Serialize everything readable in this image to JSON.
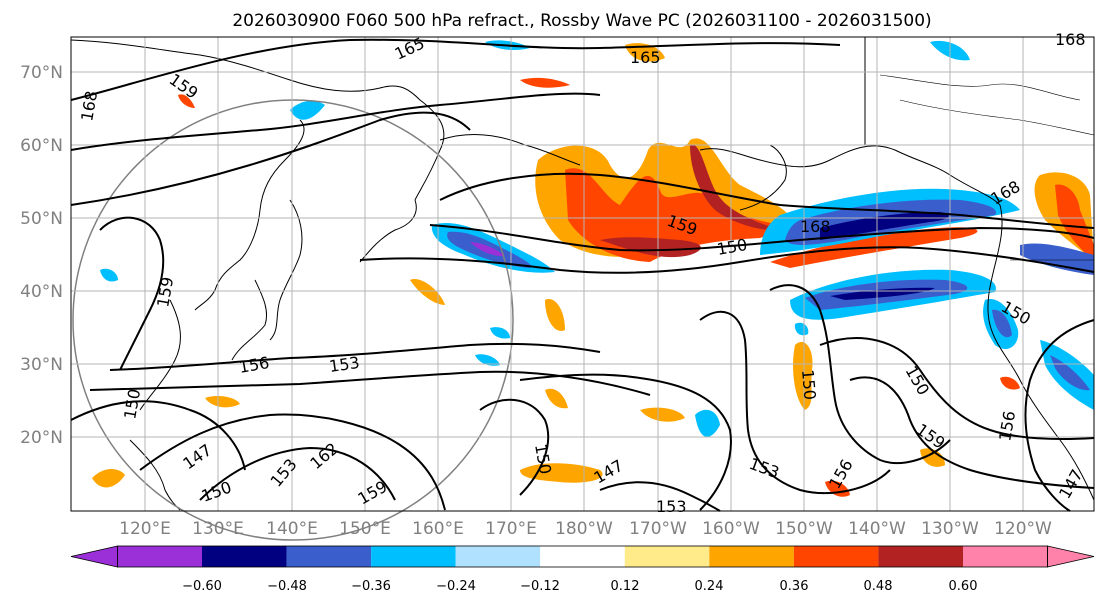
{
  "title": "2026030900 F060 500 hPa refract., Rossby Wave PC (2026031100 - 2026031500)",
  "lat_labels": [
    "70°N",
    "60°N",
    "50°N",
    "40°N",
    "30°N",
    "20°N"
  ],
  "lon_labels": [
    "120°E",
    "130°E",
    "140°E",
    "150°E",
    "160°E",
    "170°E",
    "180°W",
    "170°W",
    "160°W",
    "150°W",
    "140°W",
    "130°W",
    "120°W"
  ],
  "contour_labels": [
    "165",
    "165",
    "168",
    "168",
    "159",
    "159",
    "159",
    "156",
    "153",
    "150",
    "150",
    "150",
    "150",
    "150",
    "147",
    "147",
    "147",
    "156",
    "162",
    "150",
    "159",
    "153",
    "153",
    "156",
    "159",
    "153",
    "168",
    "150",
    "168"
  ],
  "colorbar": {
    "ticks": [
      "−0.60",
      "−0.48",
      "−0.36",
      "−0.24",
      "−0.12",
      "0.12",
      "0.24",
      "0.36",
      "0.48",
      "0.60"
    ],
    "colors": [
      "#9b30d8",
      "#000080",
      "#3a5fcd",
      "#00bfff",
      "#b0e2ff",
      "#ffffff",
      "#ffeb8a",
      "#ffa500",
      "#ff4500",
      "#b22222",
      "#ff82ab",
      "#ff82ab"
    ]
  }
}
